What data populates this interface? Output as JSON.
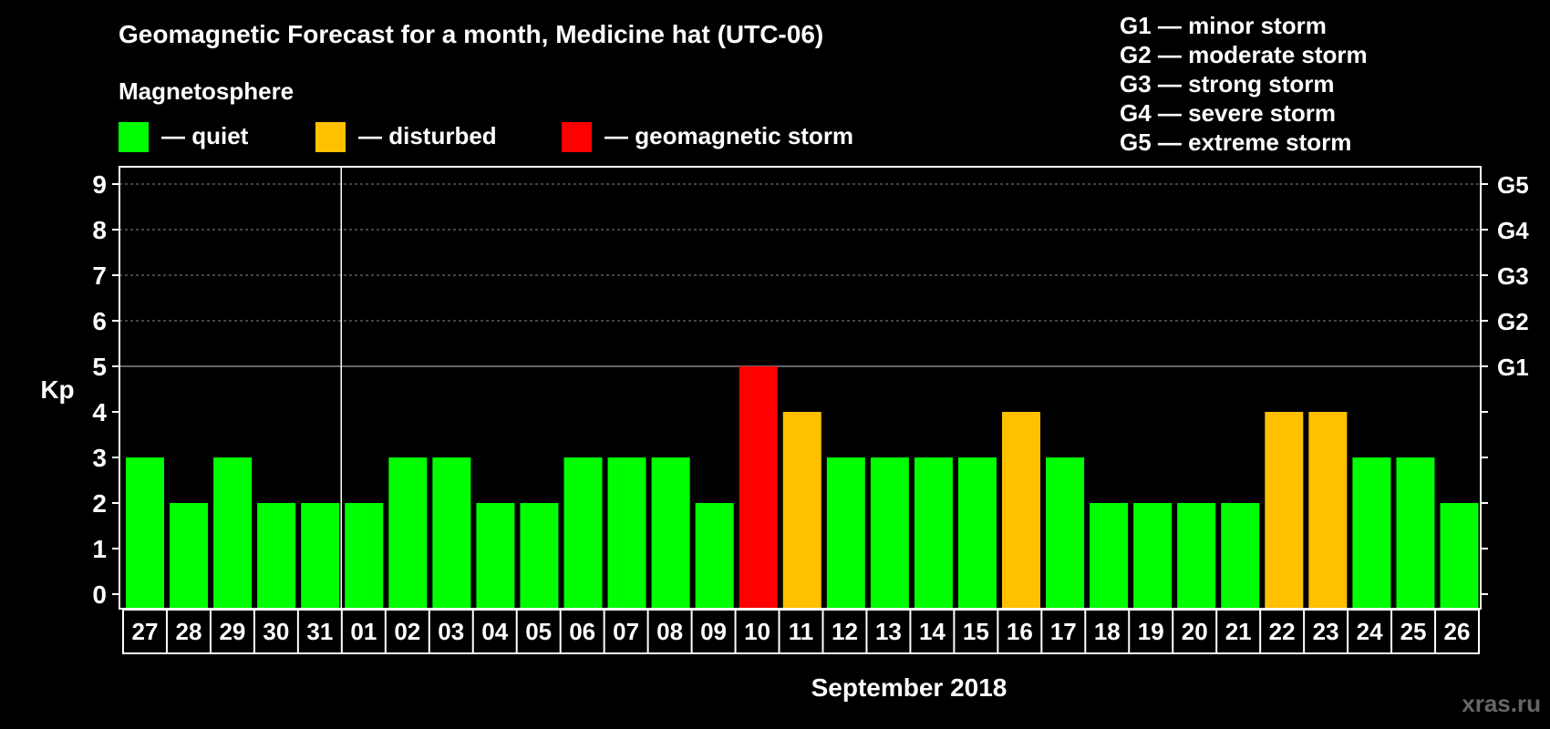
{
  "header": {
    "title": "Geomagnetic Forecast for a month, Medicine hat (UTC-06)",
    "subtitle": "Magnetosphere"
  },
  "legend": {
    "items": [
      {
        "label": "— quiet",
        "color": "#00ff00"
      },
      {
        "label": "— disturbed",
        "color": "#ffc000"
      },
      {
        "label": "— geomagnetic storm",
        "color": "#ff0000"
      }
    ]
  },
  "storm_scale": [
    "G1 — minor storm",
    "G2 — moderate storm",
    "G3 — strong storm",
    "G4 — severe storm",
    "G5 — extreme storm"
  ],
  "watermark": "xras.ru",
  "chart_data": {
    "type": "bar",
    "title": "Geomagnetic Forecast for a month, Medicine hat (UTC-06)",
    "xlabel": "September 2018",
    "ylabel": "Kp",
    "ylim": [
      0,
      9
    ],
    "yticks": [
      0,
      1,
      2,
      3,
      4,
      5,
      6,
      7,
      8,
      9
    ],
    "right_ticks": [
      {
        "value": 5,
        "label": "G1"
      },
      {
        "value": 6,
        "label": "G2"
      },
      {
        "value": 7,
        "label": "G3"
      },
      {
        "value": 8,
        "label": "G4"
      },
      {
        "value": 9,
        "label": "G5"
      }
    ],
    "month_divider_after": "31",
    "categories": [
      "27",
      "28",
      "29",
      "30",
      "31",
      "01",
      "02",
      "03",
      "04",
      "05",
      "06",
      "07",
      "08",
      "09",
      "10",
      "11",
      "12",
      "13",
      "14",
      "15",
      "16",
      "17",
      "18",
      "19",
      "20",
      "21",
      "22",
      "23",
      "24",
      "25",
      "26"
    ],
    "values": [
      3,
      2,
      3,
      2,
      2,
      2,
      3,
      3,
      2,
      2,
      3,
      3,
      3,
      2,
      5,
      4,
      3,
      3,
      3,
      3,
      4,
      3,
      2,
      2,
      2,
      2,
      4,
      4,
      3,
      3,
      2
    ],
    "colors": {
      "quiet": "#00ff00",
      "disturbed": "#ffc000",
      "storm": "#ff0000"
    }
  }
}
